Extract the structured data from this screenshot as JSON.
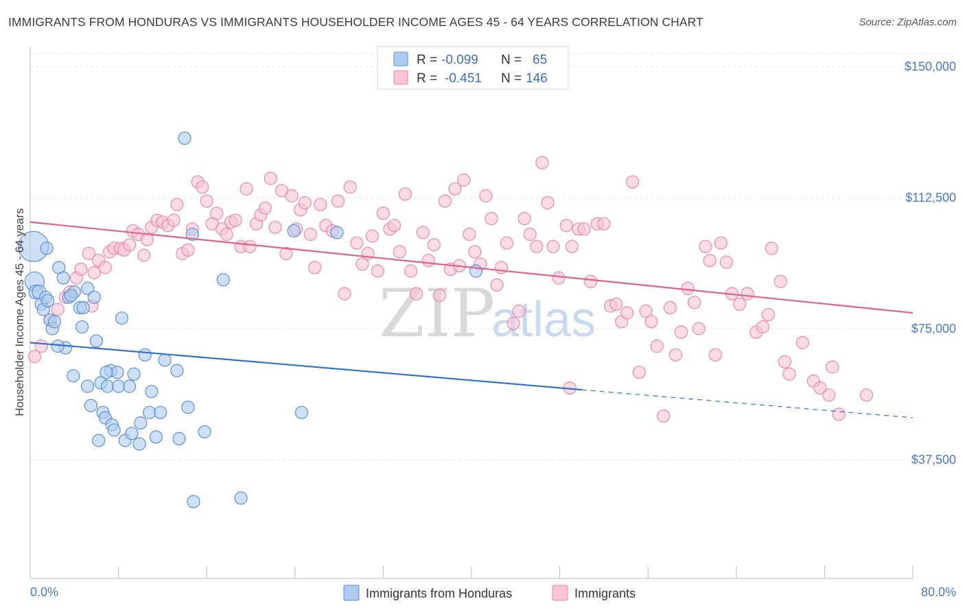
{
  "title": "IMMIGRANTS FROM HONDURAS VS IMMIGRANTS HOUSEHOLDER INCOME AGES 45 - 64 YEARS CORRELATION CHART",
  "source": "Source: ZipAtlas.com",
  "watermark": {
    "zip": "ZIP",
    "atlas": "atlas"
  },
  "legend": {
    "rows": [
      {
        "r_label": "R =",
        "r_value": "-0.099",
        "n_label": "N =",
        "n_value": "65",
        "color": "#6fa0e0"
      },
      {
        "r_label": "R =",
        "r_value": "-0.451",
        "n_label": "N =",
        "n_value": "146",
        "color": "#f08bb0"
      }
    ]
  },
  "colors": {
    "blue_fill": "#aecbf0",
    "blue_stroke": "#5b8fd6",
    "blue_line": "#2f6fcf",
    "pink_fill": "#f8c4d6",
    "pink_stroke": "#e888aa",
    "pink_line": "#e0608c",
    "grid": "#e4e4e4",
    "axis_text": "#4a7ac9"
  },
  "chart_data": {
    "type": "scatter",
    "title": "IMMIGRANTS FROM HONDURAS VS IMMIGRANTS HOUSEHOLDER INCOME AGES 45 - 64 YEARS CORRELATION CHART",
    "xlabel": "",
    "ylabel": "Householder Income Ages 45 - 64 years",
    "xlim": [
      0,
      80
    ],
    "ylim": [
      0,
      157000
    ],
    "x_tick_labels": [
      "0.0%",
      "80.0%"
    ],
    "y_ticks": [
      37500,
      75000,
      112500,
      150000
    ],
    "y_tick_labels": [
      "$37,500",
      "$75,000",
      "$112,500",
      "$150,000"
    ],
    "grid": true,
    "legend_position": "top-center",
    "series": [
      {
        "name": "Immigrants from Honduras",
        "color": "#6fa0e0",
        "trend": {
          "x": [
            0,
            50
          ],
          "y": [
            71000,
            57500
          ],
          "dashed_to": [
            80,
            49500
          ]
        },
        "points": [
          [
            0.3,
            98500,
            22
          ],
          [
            0.4,
            88500,
            14
          ],
          [
            0.5,
            85500,
            10
          ],
          [
            0.8,
            85500,
            10
          ],
          [
            1.0,
            82000,
            9
          ],
          [
            1.2,
            80500,
            9
          ],
          [
            1.4,
            84000,
            9
          ],
          [
            1.6,
            83000,
            9
          ],
          [
            1.8,
            77500,
            9
          ],
          [
            2.0,
            75000,
            9
          ],
          [
            2.2,
            77000,
            9
          ],
          [
            2.6,
            92500,
            9
          ],
          [
            3.0,
            89500,
            9
          ],
          [
            3.2,
            69500,
            9
          ],
          [
            3.5,
            84000,
            9
          ],
          [
            4.0,
            85500,
            9
          ],
          [
            4.5,
            81000,
            9
          ],
          [
            4.7,
            75500,
            9
          ],
          [
            4.8,
            81000,
            9
          ],
          [
            3.9,
            61500,
            9
          ],
          [
            5.2,
            86500,
            9
          ],
          [
            5.5,
            53000,
            9
          ],
          [
            5.2,
            58500,
            9
          ],
          [
            5.8,
            84000,
            9
          ],
          [
            6.0,
            71500,
            9
          ],
          [
            6.2,
            43000,
            9
          ],
          [
            6.4,
            59500,
            9
          ],
          [
            6.6,
            51000,
            9
          ],
          [
            6.8,
            49500,
            9
          ],
          [
            7.0,
            58500,
            9
          ],
          [
            7.3,
            63000,
            9
          ],
          [
            7.4,
            47500,
            9
          ],
          [
            7.6,
            46000,
            9
          ],
          [
            7.9,
            62500,
            9
          ],
          [
            8.0,
            58500,
            9
          ],
          [
            8.3,
            78000,
            9
          ],
          [
            8.6,
            43000,
            9
          ],
          [
            9.0,
            58500,
            9
          ],
          [
            9.2,
            45000,
            9
          ],
          [
            9.4,
            62000,
            9
          ],
          [
            9.9,
            42000,
            9
          ],
          [
            10.0,
            48000,
            9
          ],
          [
            10.4,
            67500,
            9
          ],
          [
            10.8,
            51000,
            9
          ],
          [
            11.0,
            57000,
            9
          ],
          [
            11.4,
            44000,
            9
          ],
          [
            11.8,
            51000,
            9
          ],
          [
            12.2,
            66000,
            9
          ],
          [
            13.3,
            63000,
            9
          ],
          [
            13.5,
            43500,
            9
          ],
          [
            14.3,
            52500,
            9
          ],
          [
            15.8,
            45500,
            9
          ],
          [
            14.0,
            129500,
            9
          ],
          [
            14.7,
            102000,
            9
          ],
          [
            14.8,
            25500,
            9
          ],
          [
            17.5,
            89000,
            9
          ],
          [
            19.1,
            26500,
            9
          ],
          [
            23.9,
            103000,
            9
          ],
          [
            24.6,
            51000,
            9
          ],
          [
            27.8,
            102500,
            9
          ],
          [
            40.4,
            91500,
            9
          ],
          [
            1.5,
            98000,
            9
          ],
          [
            2.5,
            70000,
            9
          ],
          [
            3.7,
            84500,
            9
          ],
          [
            6.9,
            62500,
            9
          ]
        ]
      },
      {
        "name": "Immigrants",
        "color": "#f08bb0",
        "trend": {
          "x": [
            0,
            80
          ],
          "y": [
            105500,
            79500
          ]
        },
        "points": [
          [
            0.4,
            67000
          ],
          [
            1.0,
            70000
          ],
          [
            1.8,
            77500
          ],
          [
            2.5,
            80500
          ],
          [
            3.2,
            84000
          ],
          [
            3.6,
            85500
          ],
          [
            4.2,
            89500
          ],
          [
            4.6,
            92000
          ],
          [
            5.3,
            96500
          ],
          [
            5.6,
            81500
          ],
          [
            5.8,
            91000
          ],
          [
            6.2,
            94500
          ],
          [
            6.8,
            92500
          ],
          [
            7.2,
            97000
          ],
          [
            7.6,
            98000
          ],
          [
            8.2,
            98000
          ],
          [
            8.5,
            97500
          ],
          [
            9.0,
            99000
          ],
          [
            9.3,
            103000
          ],
          [
            9.8,
            102000
          ],
          [
            10.3,
            96000
          ],
          [
            10.6,
            100500
          ],
          [
            11.0,
            104000
          ],
          [
            11.5,
            106000
          ],
          [
            12.0,
            105500
          ],
          [
            12.5,
            104500
          ],
          [
            13.0,
            106000
          ],
          [
            13.3,
            110500
          ],
          [
            13.8,
            96500
          ],
          [
            14.3,
            97500
          ],
          [
            14.7,
            103500
          ],
          [
            15.2,
            117000
          ],
          [
            15.6,
            115500
          ],
          [
            16.0,
            111500
          ],
          [
            16.5,
            105000
          ],
          [
            16.9,
            108000
          ],
          [
            17.4,
            103500
          ],
          [
            17.8,
            102000
          ],
          [
            18.2,
            105500
          ],
          [
            18.6,
            106000
          ],
          [
            19.1,
            98500
          ],
          [
            19.6,
            115000
          ],
          [
            19.9,
            98500
          ],
          [
            20.5,
            105000
          ],
          [
            20.9,
            107500
          ],
          [
            21.3,
            109500
          ],
          [
            21.8,
            118000
          ],
          [
            22.2,
            104000
          ],
          [
            22.8,
            114500
          ],
          [
            23.2,
            96500
          ],
          [
            23.7,
            113000
          ],
          [
            24.1,
            103500
          ],
          [
            24.5,
            109000
          ],
          [
            24.9,
            111000
          ],
          [
            25.4,
            102000
          ],
          [
            25.8,
            92500
          ],
          [
            26.3,
            110500
          ],
          [
            26.8,
            104500
          ],
          [
            27.4,
            103000
          ],
          [
            27.9,
            111500
          ],
          [
            28.5,
            85000
          ],
          [
            29.0,
            115500
          ],
          [
            29.6,
            99500
          ],
          [
            30.1,
            93500
          ],
          [
            30.6,
            96500
          ],
          [
            31.0,
            101500
          ],
          [
            31.5,
            91500
          ],
          [
            32.0,
            108000
          ],
          [
            32.6,
            103500
          ],
          [
            33.0,
            104500
          ],
          [
            33.5,
            97000
          ],
          [
            34.0,
            113500
          ],
          [
            34.5,
            91500
          ],
          [
            35.0,
            85000
          ],
          [
            35.6,
            102500
          ],
          [
            36.1,
            94500
          ],
          [
            36.6,
            99000
          ],
          [
            37.1,
            84500
          ],
          [
            37.6,
            111500
          ],
          [
            38.1,
            92000
          ],
          [
            38.5,
            115000
          ],
          [
            38.9,
            93000
          ],
          [
            39.3,
            117500
          ],
          [
            39.8,
            102000
          ],
          [
            40.3,
            97000
          ],
          [
            40.8,
            93500
          ],
          [
            41.3,
            113000
          ],
          [
            41.8,
            106500
          ],
          [
            42.3,
            87500
          ],
          [
            42.7,
            92500
          ],
          [
            43.2,
            99500
          ],
          [
            43.8,
            76500
          ],
          [
            44.3,
            80000
          ],
          [
            44.8,
            106500
          ],
          [
            45.3,
            102000
          ],
          [
            45.9,
            98500
          ],
          [
            46.4,
            122500
          ],
          [
            46.9,
            111000
          ],
          [
            47.4,
            98500
          ],
          [
            47.9,
            89500
          ],
          [
            48.6,
            104500
          ],
          [
            49.1,
            98500
          ],
          [
            49.7,
            103500
          ],
          [
            50.2,
            103500
          ],
          [
            50.8,
            88500
          ],
          [
            51.4,
            105000
          ],
          [
            52.0,
            105000
          ],
          [
            52.6,
            81500
          ],
          [
            53.1,
            82000
          ],
          [
            53.6,
            77000
          ],
          [
            54.1,
            79500
          ],
          [
            54.6,
            117000
          ],
          [
            55.2,
            62500
          ],
          [
            55.8,
            80000
          ],
          [
            56.3,
            77000
          ],
          [
            56.8,
            70000
          ],
          [
            57.4,
            50000
          ],
          [
            58.0,
            81000
          ],
          [
            58.5,
            67500
          ],
          [
            59.0,
            74000
          ],
          [
            59.6,
            86500
          ],
          [
            60.2,
            82500
          ],
          [
            60.6,
            75000
          ],
          [
            61.2,
            98500
          ],
          [
            61.6,
            94500
          ],
          [
            62.1,
            67500
          ],
          [
            62.6,
            99500
          ],
          [
            63.1,
            94000
          ],
          [
            63.6,
            85000
          ],
          [
            64.3,
            82000
          ],
          [
            65.0,
            85000
          ],
          [
            65.8,
            74000
          ],
          [
            66.4,
            75500
          ],
          [
            67.2,
            98000
          ],
          [
            68.0,
            88500
          ],
          [
            68.4,
            65500
          ],
          [
            68.8,
            62000
          ],
          [
            70.0,
            71000
          ],
          [
            71.0,
            60000
          ],
          [
            71.6,
            58000
          ],
          [
            72.4,
            56000
          ],
          [
            72.7,
            64000
          ],
          [
            73.3,
            50500
          ],
          [
            75.8,
            56000
          ],
          [
            66.9,
            79000
          ],
          [
            48.9,
            58000
          ]
        ]
      }
    ]
  }
}
